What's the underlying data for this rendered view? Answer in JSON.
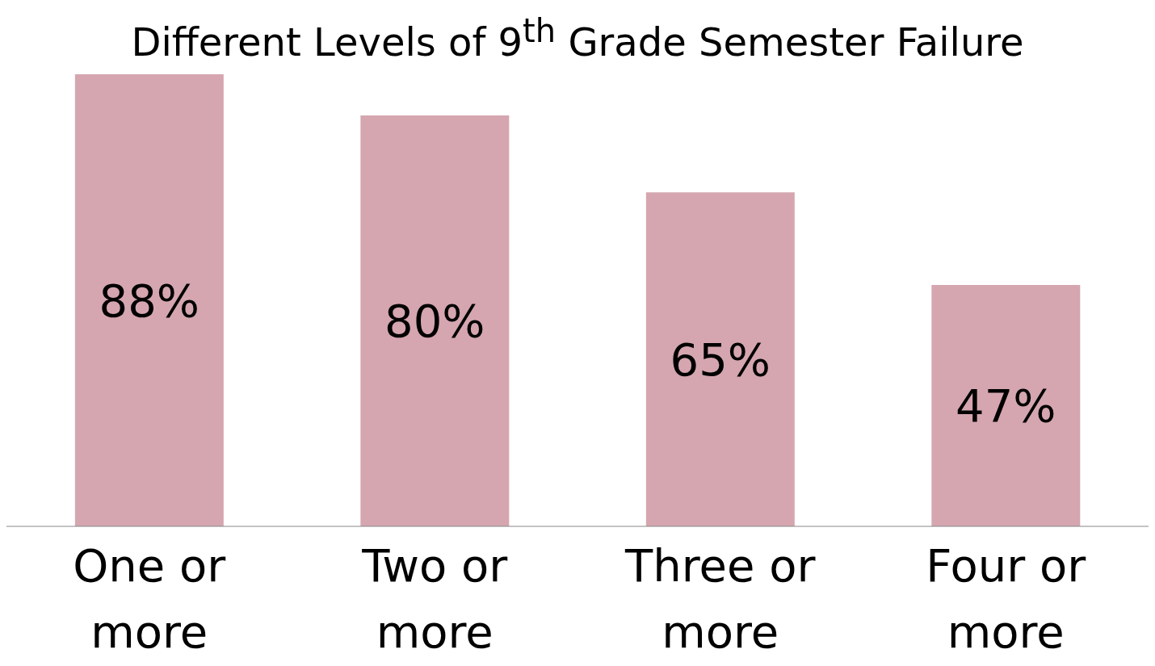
{
  "chart_data": {
    "type": "bar",
    "title": "Different Levels of 9$^{th}$ Grade Semester Failure",
    "categories": [
      "One or more",
      "Two or more",
      "Three or more",
      "Four or more"
    ],
    "values": [
      88,
      80,
      65,
      47
    ],
    "value_labels": [
      "88%",
      "80%",
      "65%",
      "47%"
    ],
    "color": "#d5a6b0",
    "grid": false,
    "legend": false
  }
}
